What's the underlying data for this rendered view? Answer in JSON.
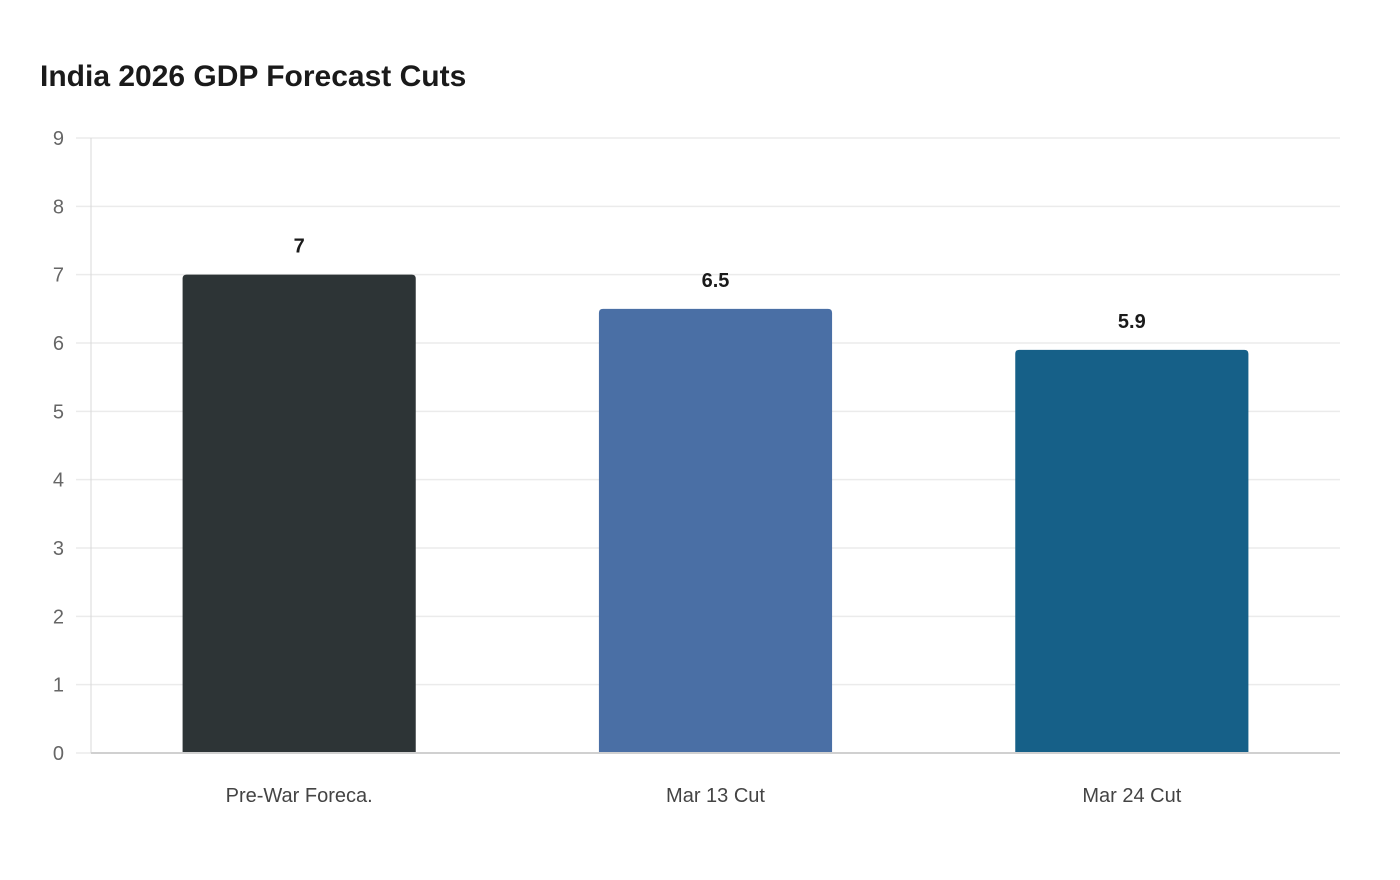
{
  "chart_data": {
    "type": "bar",
    "title": "India 2026 GDP Forecast Cuts",
    "categories": [
      "Pre-War Foreca.",
      "Mar 13 Cut",
      "Mar 24 Cut"
    ],
    "values": [
      7,
      6.5,
      5.9
    ],
    "data_labels": [
      "7",
      "6.5",
      "5.9"
    ],
    "colors": [
      "#2d3436",
      "#4a6fa5",
      "#166088"
    ],
    "ylim": [
      0,
      9
    ],
    "yticks": [
      0,
      1,
      2,
      3,
      4,
      5,
      6,
      7,
      8,
      9
    ],
    "grid": true,
    "legend": "none",
    "xlabel": "",
    "ylabel": ""
  }
}
